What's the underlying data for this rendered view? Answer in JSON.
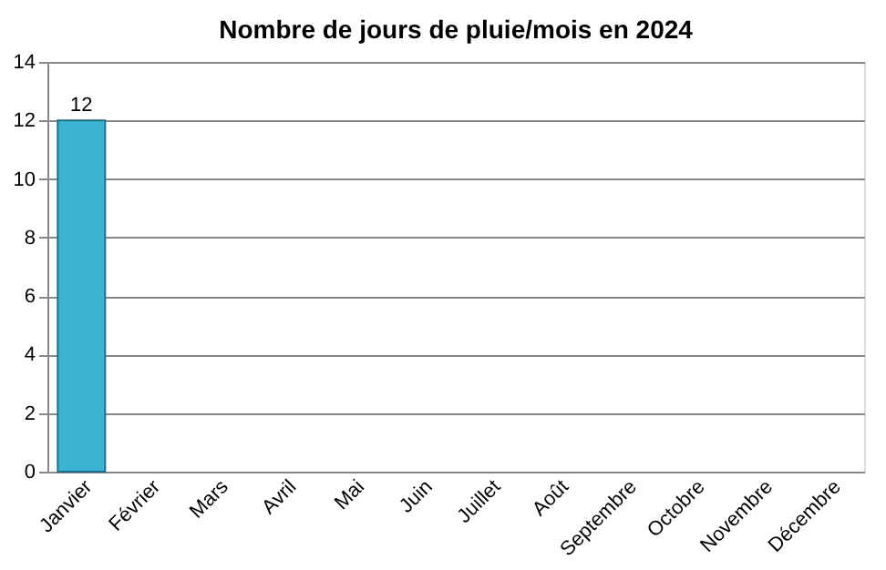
{
  "chart_data": {
    "type": "bar",
    "title": "Nombre de jours de pluie/mois en 2024",
    "categories": [
      "Janvier",
      "Février",
      "Mars",
      "Avril",
      "Mai",
      "Juin",
      "Juillet",
      "Août",
      "Septembre",
      "Octobre",
      "Novembre",
      "Décembre"
    ],
    "values": [
      12,
      null,
      null,
      null,
      null,
      null,
      null,
      null,
      null,
      null,
      null,
      null
    ],
    "color": "#3bb4d4",
    "ylim": [
      0,
      14
    ],
    "yticks": [
      0,
      2,
      4,
      6,
      8,
      10,
      12,
      14
    ],
    "grid": "y",
    "data_labels": true
  }
}
